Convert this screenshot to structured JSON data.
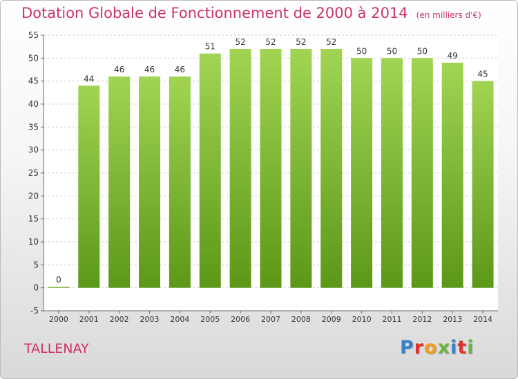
{
  "header": {
    "title": "Dotation Globale de Fonctionnement de 2000 à 2014",
    "unit": "(en milliers d'€)"
  },
  "commune": "TALLENAY",
  "logo": {
    "text": "Proxiti",
    "letter_colors": [
      "#3a7fc8",
      "#e0312d",
      "#f29a1e",
      "#6db33f",
      "#3a7fc8",
      "#e0312d",
      "#6db33f"
    ]
  },
  "colors": {
    "bar_top": "#a1d453",
    "bar_bottom": "#5c9818",
    "grid": "#cccccc",
    "title": "#cc3366"
  },
  "chart_data": {
    "type": "bar",
    "categories": [
      "2000",
      "2001",
      "2002",
      "2003",
      "2004",
      "2005",
      "2006",
      "2007",
      "2008",
      "2009",
      "2010",
      "2011",
      "2012",
      "2013",
      "2014"
    ],
    "values": [
      0,
      44,
      46,
      46,
      46,
      51,
      52,
      52,
      52,
      52,
      50,
      50,
      50,
      49,
      45
    ],
    "title": "Dotation Globale de Fonctionnement de 2000 à 2014",
    "ylim": [
      -5,
      55
    ],
    "yticks": [
      -5,
      0,
      5,
      10,
      15,
      20,
      25,
      30,
      35,
      40,
      45,
      50,
      55
    ],
    "grid": true,
    "legend": "none"
  }
}
